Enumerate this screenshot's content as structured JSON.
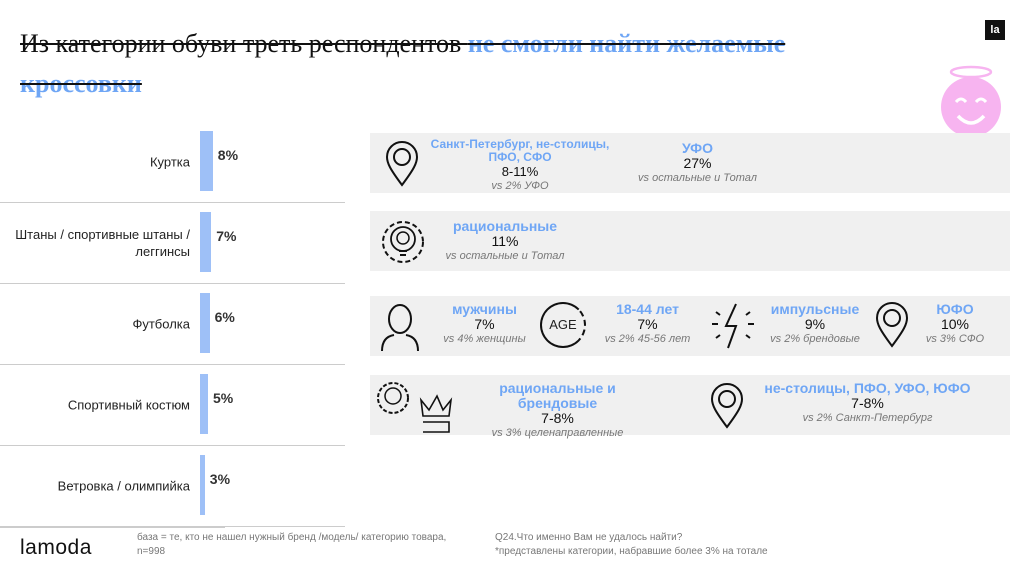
{
  "header": {
    "title_black": "Из категории обуви треть респондентов ",
    "title_blue": "не смогли найти желаемые кроссовки",
    "badge": "la"
  },
  "colors": {
    "accent": "#6fa6f5",
    "bar": "#9ec0f7",
    "panel": "#f0f0f0",
    "angel": "#f7b4f0"
  },
  "chart_data": {
    "type": "bar",
    "orientation": "horizontal",
    "categories": [
      "Куртка",
      "Штаны / спортивные штаны / леггинсы",
      "Футболка",
      "Спортивный костюм",
      "Ветровка / олимпийка"
    ],
    "values": [
      8,
      7,
      6,
      5,
      3
    ],
    "labels": [
      "8%",
      "7%",
      "6%",
      "5%",
      "3%"
    ],
    "unit": "%"
  },
  "panels": [
    {
      "cells": [
        {
          "icon": "map-pin-icon",
          "head": "Санкт-Петербург, не-столицы, ПФО, СФО",
          "pct": "8-11%",
          "cmp": "vs 2% УФО"
        },
        {
          "head": "УФО",
          "pct": "27%",
          "cmp": "vs остальные и Тотал"
        }
      ]
    },
    {
      "cells": [
        {
          "icon": "lightbulb-gear-icon",
          "head": "рациональные",
          "pct": "11%",
          "cmp": "vs остальные и Тотал"
        }
      ]
    },
    {
      "cells": [
        {
          "icon": "person-icon",
          "head": "мужчины",
          "pct": "7%",
          "cmp": "vs 4% женщины"
        },
        {
          "icon": "age-icon",
          "icon_text": "AGE",
          "head": "18-44 лет",
          "pct": "7%",
          "cmp": "vs 2% 45-56 лет"
        },
        {
          "icon": "lightning-icon",
          "head": "импульсные",
          "pct": "9%",
          "cmp": "vs 2% брендовые"
        },
        {
          "icon": "map-pin-icon",
          "head": "ЮФО",
          "pct": "10%",
          "cmp": "vs 3% СФО"
        }
      ]
    },
    {
      "cells": [
        {
          "icon": "lightbulb-gear-crown-icon",
          "head": "рациональные и брендовые",
          "pct": "7-8%",
          "cmp": "vs 3% целенаправленные"
        },
        {
          "icon": "map-pin-icon",
          "head": "не-столицы, ПФО, УФО, ЮФО",
          "pct": "7-8%",
          "cmp": "vs 2% Санкт-Петербург"
        }
      ]
    }
  ],
  "footer": {
    "brand": "lamoda",
    "base": "база = те, кто не нашел нужный бренд /модель/ категорию товара, n=998",
    "question": "Q24.Что именно Вам не удалось найти?",
    "note": "*представлены категории, набравшие более 3% на тотале"
  }
}
